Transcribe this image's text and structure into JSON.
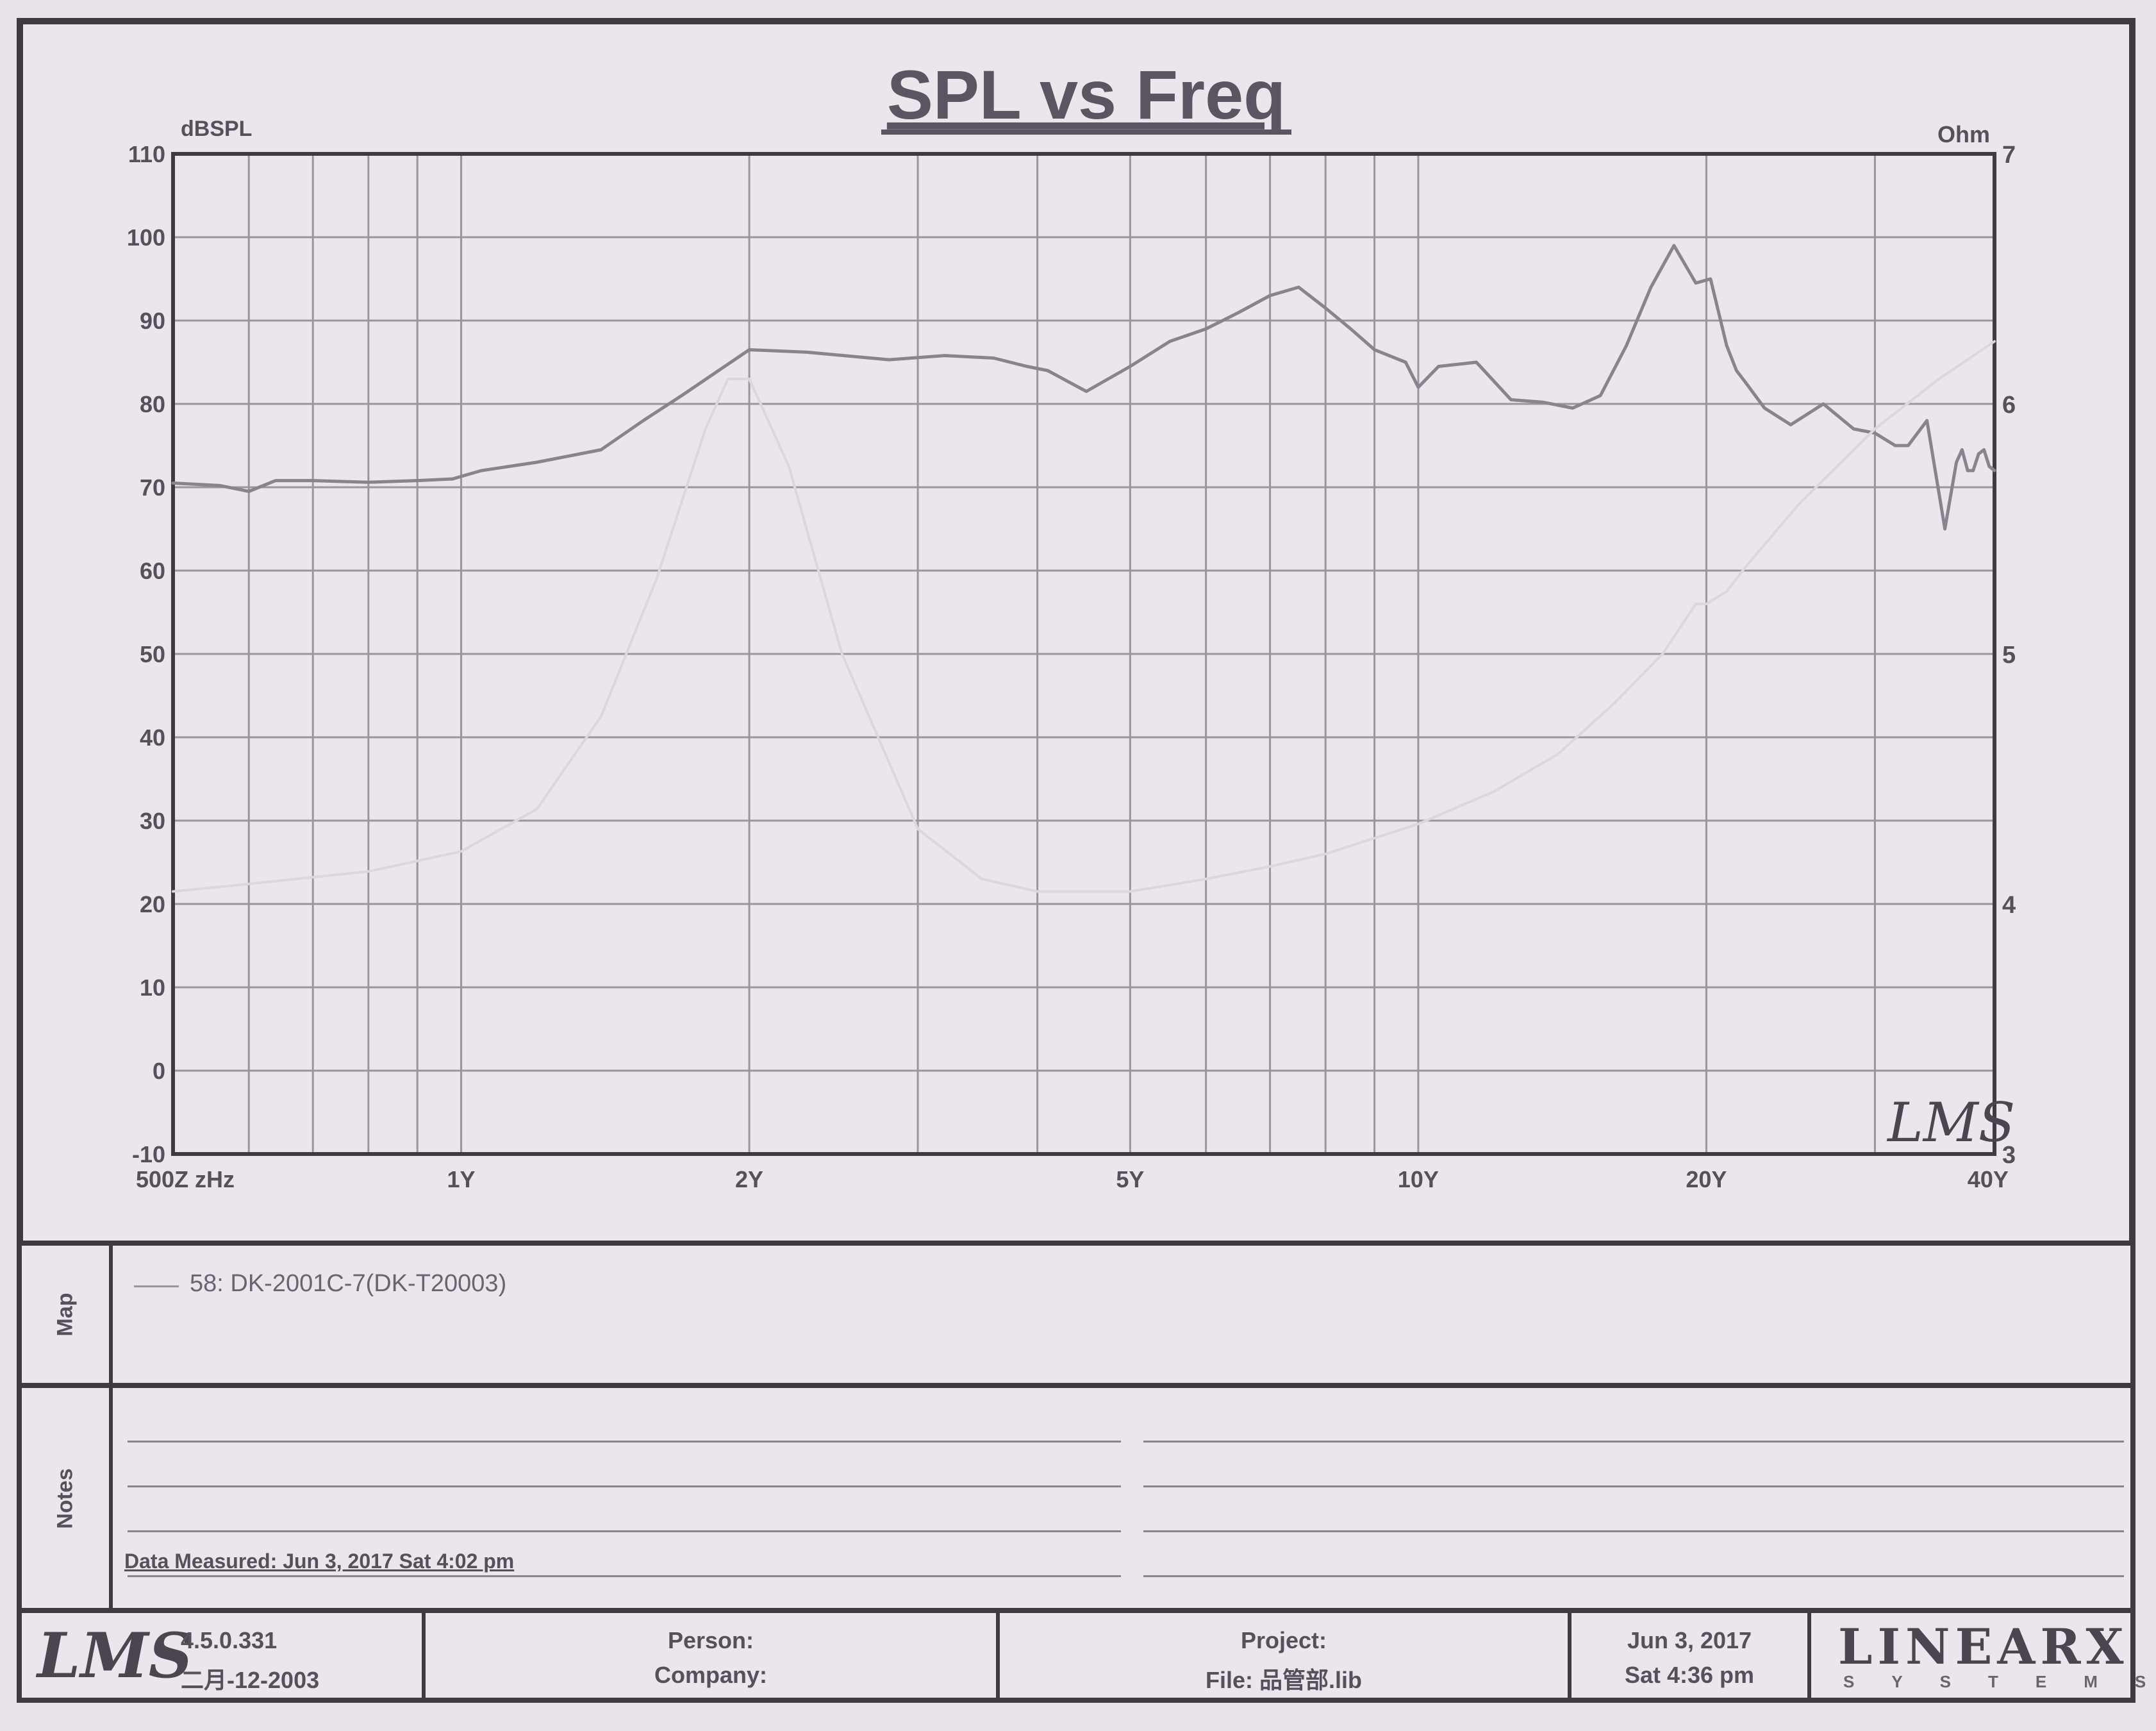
{
  "chart_data": {
    "type": "line",
    "title": "SPL vs Freq",
    "y_left_unit": "dBSPL",
    "y_right_unit": "Ohm",
    "y_left_range": [
      -10,
      110
    ],
    "y_right_range": [
      3,
      7
    ],
    "y_left_ticks": [
      "110",
      "100",
      "90",
      "80",
      "70",
      "60",
      "50",
      "40",
      "30",
      "20",
      "10",
      "0",
      "-10"
    ],
    "y_right_ticks": [
      "7",
      "6",
      "5",
      "4",
      "3"
    ],
    "x_tick_labels": [
      "500Z zHz",
      "1Y",
      "2Y",
      "5Y",
      "10Y",
      "20Y",
      "40Y"
    ],
    "x_log_decades_from_start": [
      0,
      0.301,
      0.602,
      1.0,
      1.301,
      1.602,
      1.903
    ],
    "grid": true,
    "series": [
      {
        "name": "58: DK-2001C-7(DK-T20003)",
        "axis": "left",
        "x": [
          0.5,
          0.56,
          0.6,
          0.64,
          0.7,
          0.8,
          0.9,
          0.98,
          1.0,
          1.05,
          1.2,
          1.4,
          1.55,
          1.7,
          2.0,
          2.3,
          2.8,
          3.2,
          3.6,
          3.9,
          4.1,
          4.5,
          5.0,
          5.5,
          6.0,
          6.5,
          7.0,
          7.5,
          8.0,
          8.5,
          9.0,
          9.7,
          10.0,
          10.5,
          11.5,
          12.5,
          13.5,
          14.5,
          15.5,
          16.5,
          17.5,
          18.5,
          19.5,
          20.2,
          21.0,
          21.5,
          22.0,
          23.0,
          24.5,
          26.5,
          28.5,
          30.0,
          31.5,
          32.5,
          34.0,
          35.5,
          36.5,
          37.0,
          37.5,
          38.0,
          38.5,
          39.0,
          39.5,
          40.0
        ],
        "y": [
          70.5,
          70.2,
          69.5,
          70.8,
          70.8,
          70.6,
          70.8,
          71.0,
          71.3,
          72.0,
          73.0,
          74.5,
          78.0,
          81.0,
          86.5,
          86.2,
          85.3,
          85.8,
          85.5,
          84.5,
          84.0,
          81.5,
          84.5,
          87.5,
          89.0,
          91.0,
          93.0,
          94.0,
          91.5,
          89.0,
          86.5,
          85.0,
          82.0,
          84.5,
          85.0,
          80.5,
          80.2,
          79.5,
          81.0,
          87.0,
          94.0,
          99.0,
          94.5,
          95.0,
          87.0,
          84.0,
          82.5,
          79.5,
          77.5,
          80.0,
          77.0,
          76.5,
          75.0,
          75.0,
          78.0,
          65.0,
          73.0,
          74.5,
          72.0,
          72.0,
          74.0,
          74.5,
          72.5,
          72.0
        ]
      },
      {
        "name": "",
        "axis": "right",
        "x": [
          0.5,
          0.6,
          0.8,
          1.0,
          1.2,
          1.4,
          1.6,
          1.8,
          1.9,
          2.0,
          2.2,
          2.5,
          3.0,
          3.5,
          4.0,
          5.0,
          6.0,
          7.0,
          8.0,
          10.0,
          12.0,
          14.0,
          16.0,
          18.0,
          19.5,
          20.0,
          21.0,
          22.0,
          25.0,
          30.0,
          35.0,
          40.0
        ],
        "y": [
          4.05,
          4.08,
          4.13,
          4.21,
          4.38,
          4.75,
          5.3,
          5.9,
          6.1,
          6.1,
          5.75,
          5.0,
          4.3,
          4.1,
          4.05,
          4.05,
          4.1,
          4.15,
          4.2,
          4.32,
          4.45,
          4.6,
          4.8,
          5.0,
          5.2,
          5.2,
          5.25,
          5.35,
          5.6,
          5.9,
          6.1,
          6.25
        ]
      }
    ]
  },
  "map_panel": {
    "label": "Map",
    "legend_entry": "58: DK-2001C-7(DK-T20003)"
  },
  "notes_panel": {
    "label": "Notes",
    "data_measured": "Data Measured: Jun  3, 2017  Sat  4:02 pm"
  },
  "footer": {
    "logo": "LMS",
    "version": "4.5.0.331",
    "build_date": "二月-12-2003",
    "person_label": "Person:",
    "company_label": "Company:",
    "project_label": "Project:",
    "file_label": "File: 品管部.lib",
    "date": "Jun  3, 2017",
    "time": "Sat  4:36 pm",
    "brand": "LINEARX",
    "brand_sub": "SYSTEMS"
  },
  "watermark": "LMS",
  "colors": {
    "frame": "#3d3a40",
    "grid": "#9c959e",
    "spl_curve": "#8a828c",
    "impedance_curve": "#dcd6dd",
    "paper": "#ebe5ec"
  }
}
